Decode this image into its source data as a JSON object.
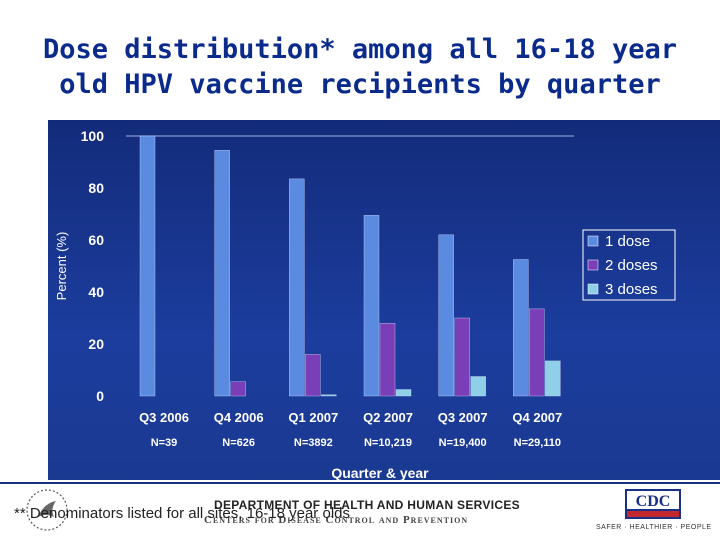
{
  "title_line1": "Dose distribution* among all 16-18 year",
  "title_line2": "old HPV vaccine recipients by quarter",
  "chart_data": {
    "type": "bar",
    "categories": [
      "Q3 2006",
      "Q4 2006",
      "Q1 2007",
      "Q2 2007",
      "Q3 2007",
      "Q4 2007"
    ],
    "category_counts": [
      "N=39",
      "N=626",
      "N=3892",
      "N=10,219",
      "N=19,400",
      "N=29,110"
    ],
    "series": [
      {
        "name": "1 dose",
        "values": [
          100,
          94.5,
          83.5,
          69.5,
          62,
          52.5
        ],
        "color": "#5b8be0"
      },
      {
        "name": "2 doses",
        "values": [
          0,
          5.5,
          16,
          28,
          30,
          33.5
        ],
        "color": "#7a3fb8"
      },
      {
        "name": "3 doses",
        "values": [
          0,
          0,
          0.5,
          2.5,
          7.5,
          13.5
        ],
        "color": "#8fd0e8"
      }
    ],
    "ylabel": "Percent (%)",
    "xlabel": "Quarter & year",
    "ylim": [
      0,
      100
    ],
    "yticks": [
      0,
      20,
      40,
      60,
      80,
      100
    ],
    "grid": false,
    "legend_position": "right"
  },
  "footnote": "** Denominators listed for all sites, 16-18 year olds",
  "footer": {
    "department": "DEPARTMENT OF HEALTH AND HUMAN SERVICES",
    "center": "Centers for Disease Control and Prevention",
    "cdc_logo": "CDC",
    "tagline": "SAFER · HEALTHIER · PEOPLE"
  },
  "colors": {
    "title": "#0a2a8c",
    "panel": "#1c3d9e",
    "axis_text": "#ffffff"
  }
}
